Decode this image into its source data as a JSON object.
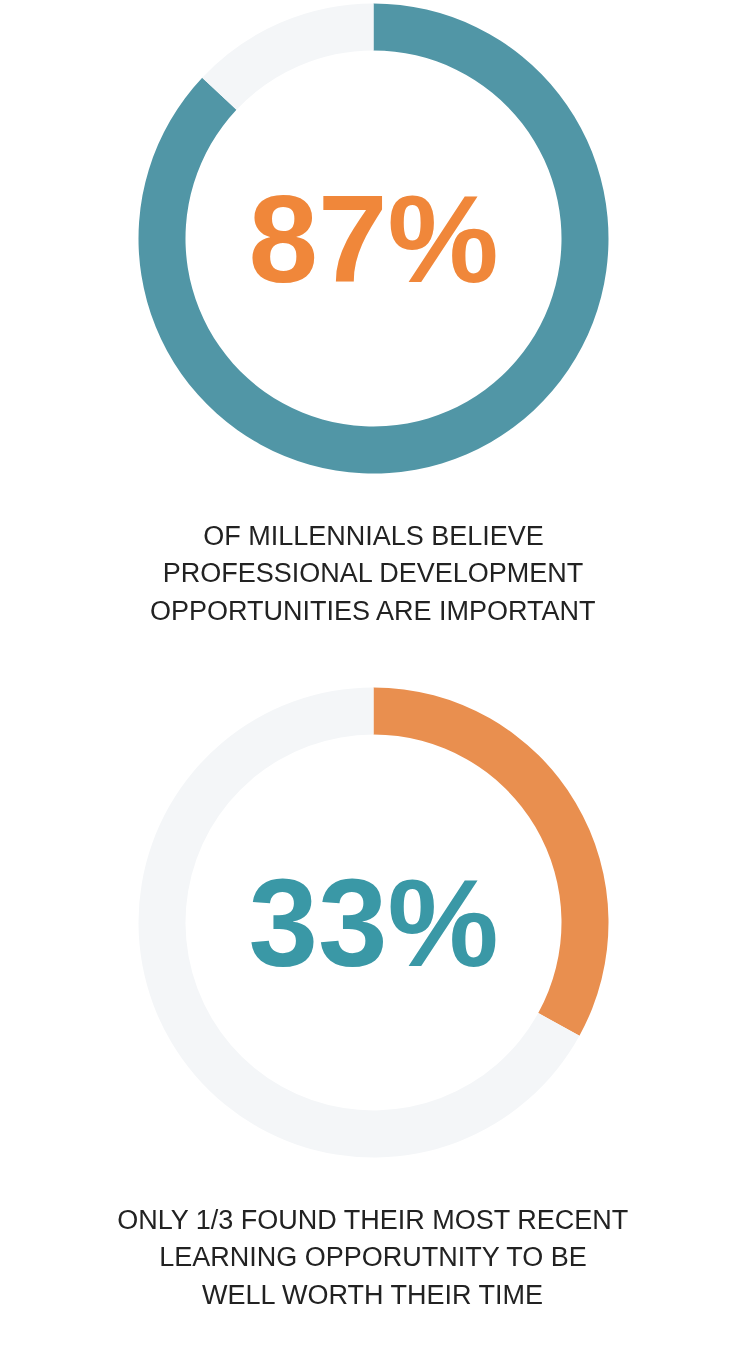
{
  "chart_data": [
    {
      "type": "donut",
      "categories": [
        null,
        null
      ],
      "values": [
        87,
        13
      ],
      "colors": [
        "#5196a6",
        "#f4f6f8"
      ],
      "annotations": [
        "87%",
        "OF MILLENNIALS BELIEVE\nPROFESSIONAL DEVELOPMENT\nOPPORTUNITIES ARE IMPORTANT"
      ]
    },
    {
      "type": "donut",
      "categories": [
        null,
        null
      ],
      "values": [
        33,
        67
      ],
      "colors": [
        "#e98f4f",
        "#f4f6f8"
      ],
      "annotations": [
        "33%",
        "ONLY 1/3 FOUND THEIR MOST RECENT\nLEARNING OPPORUTNITY TO BE\nWELL WORTH THEIR TIME"
      ]
    }
  ]
}
